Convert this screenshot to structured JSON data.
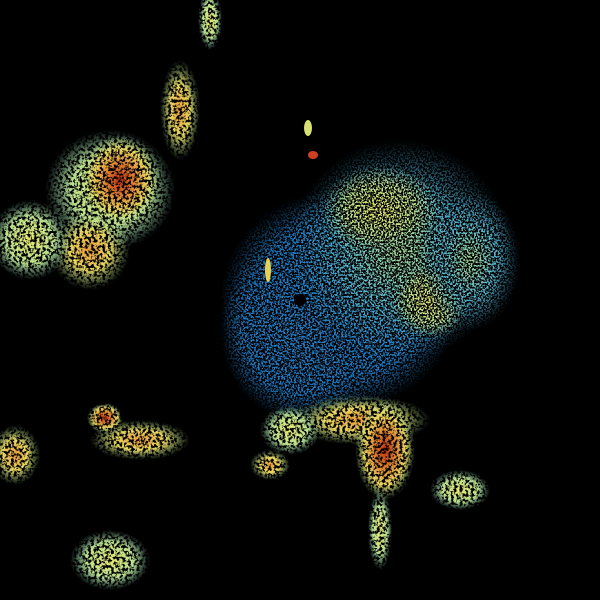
{
  "image": {
    "kind": "weather radar reflectivity",
    "background": "#000000",
    "palette": {
      "light_blue": "#1e8fd0",
      "cyan": "#4fb8d8",
      "pale_green": "#9ad6a0",
      "yellow_green": "#d8e878",
      "yellow": "#f0e060",
      "orange": "#e89030",
      "red_orange": "#d05020",
      "red": "#b02010"
    }
  }
}
